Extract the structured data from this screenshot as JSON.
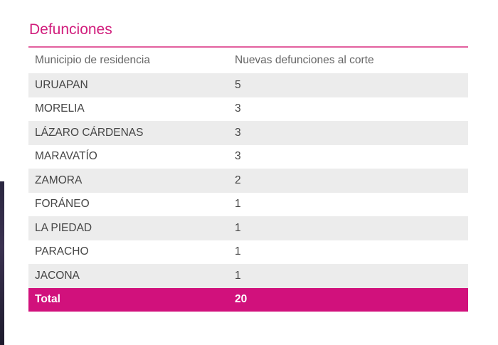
{
  "section": {
    "title": "Defunciones"
  },
  "table": {
    "headers": [
      "Municipio de residencia",
      "Nuevas defunciones al corte"
    ],
    "rows": [
      {
        "municipio": "URUAPAN",
        "defunciones": "5"
      },
      {
        "municipio": "MORELIA",
        "defunciones": "3"
      },
      {
        "municipio": "LÁZARO CÁRDENAS",
        "defunciones": "3"
      },
      {
        "municipio": "MARAVATÍO",
        "defunciones": "3"
      },
      {
        "municipio": "ZAMORA",
        "defunciones": "2"
      },
      {
        "municipio": "FORÁNEO",
        "defunciones": "1"
      },
      {
        "municipio": "LA PIEDAD",
        "defunciones": "1"
      },
      {
        "municipio": "PARACHO",
        "defunciones": "1"
      },
      {
        "municipio": "JACONA",
        "defunciones": "1"
      }
    ],
    "total": {
      "label": "Total",
      "value": "20"
    }
  },
  "colors": {
    "accent": "#d1117c",
    "title": "#d11d7c",
    "row_shade": "#ececec"
  }
}
